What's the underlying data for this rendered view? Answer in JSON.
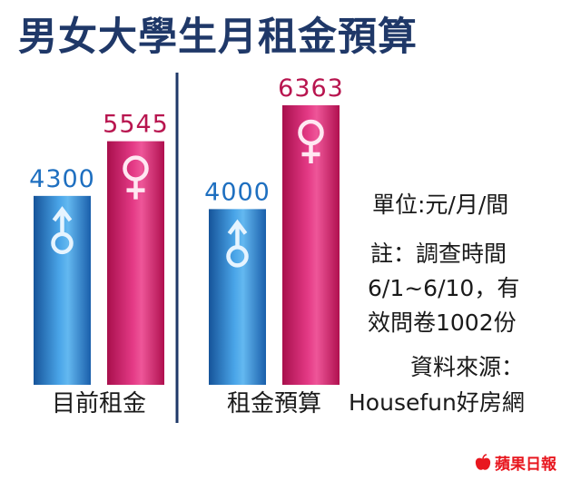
{
  "title": "男女大學生月租金預算",
  "chart_data": {
    "type": "bar",
    "title": "男女大學生月租金預算",
    "categories": [
      "目前租金",
      "租金預算"
    ],
    "series": [
      {
        "name": "♂",
        "values": [
          4300,
          4000
        ],
        "color": "#1e6fc0"
      },
      {
        "name": "♀",
        "values": [
          5545,
          6363
        ],
        "color": "#c8195f"
      }
    ],
    "ylim": [
      0,
      6363
    ]
  },
  "notes": {
    "unit": "單位:元/月/間",
    "survey_line1": "註：調查時間",
    "survey_line2": "6/1~6/10，有",
    "survey_line3": "效問卷1002份",
    "source_label": "資料來源：",
    "source_name": "Housefun好房網"
  },
  "logo": {
    "text": "蘋果日報",
    "color": "#e8171f"
  },
  "colors": {
    "title": "#1f3868",
    "male_value": "#1e6fc0",
    "female_value": "#b8154f",
    "divider": "#1f3868"
  }
}
